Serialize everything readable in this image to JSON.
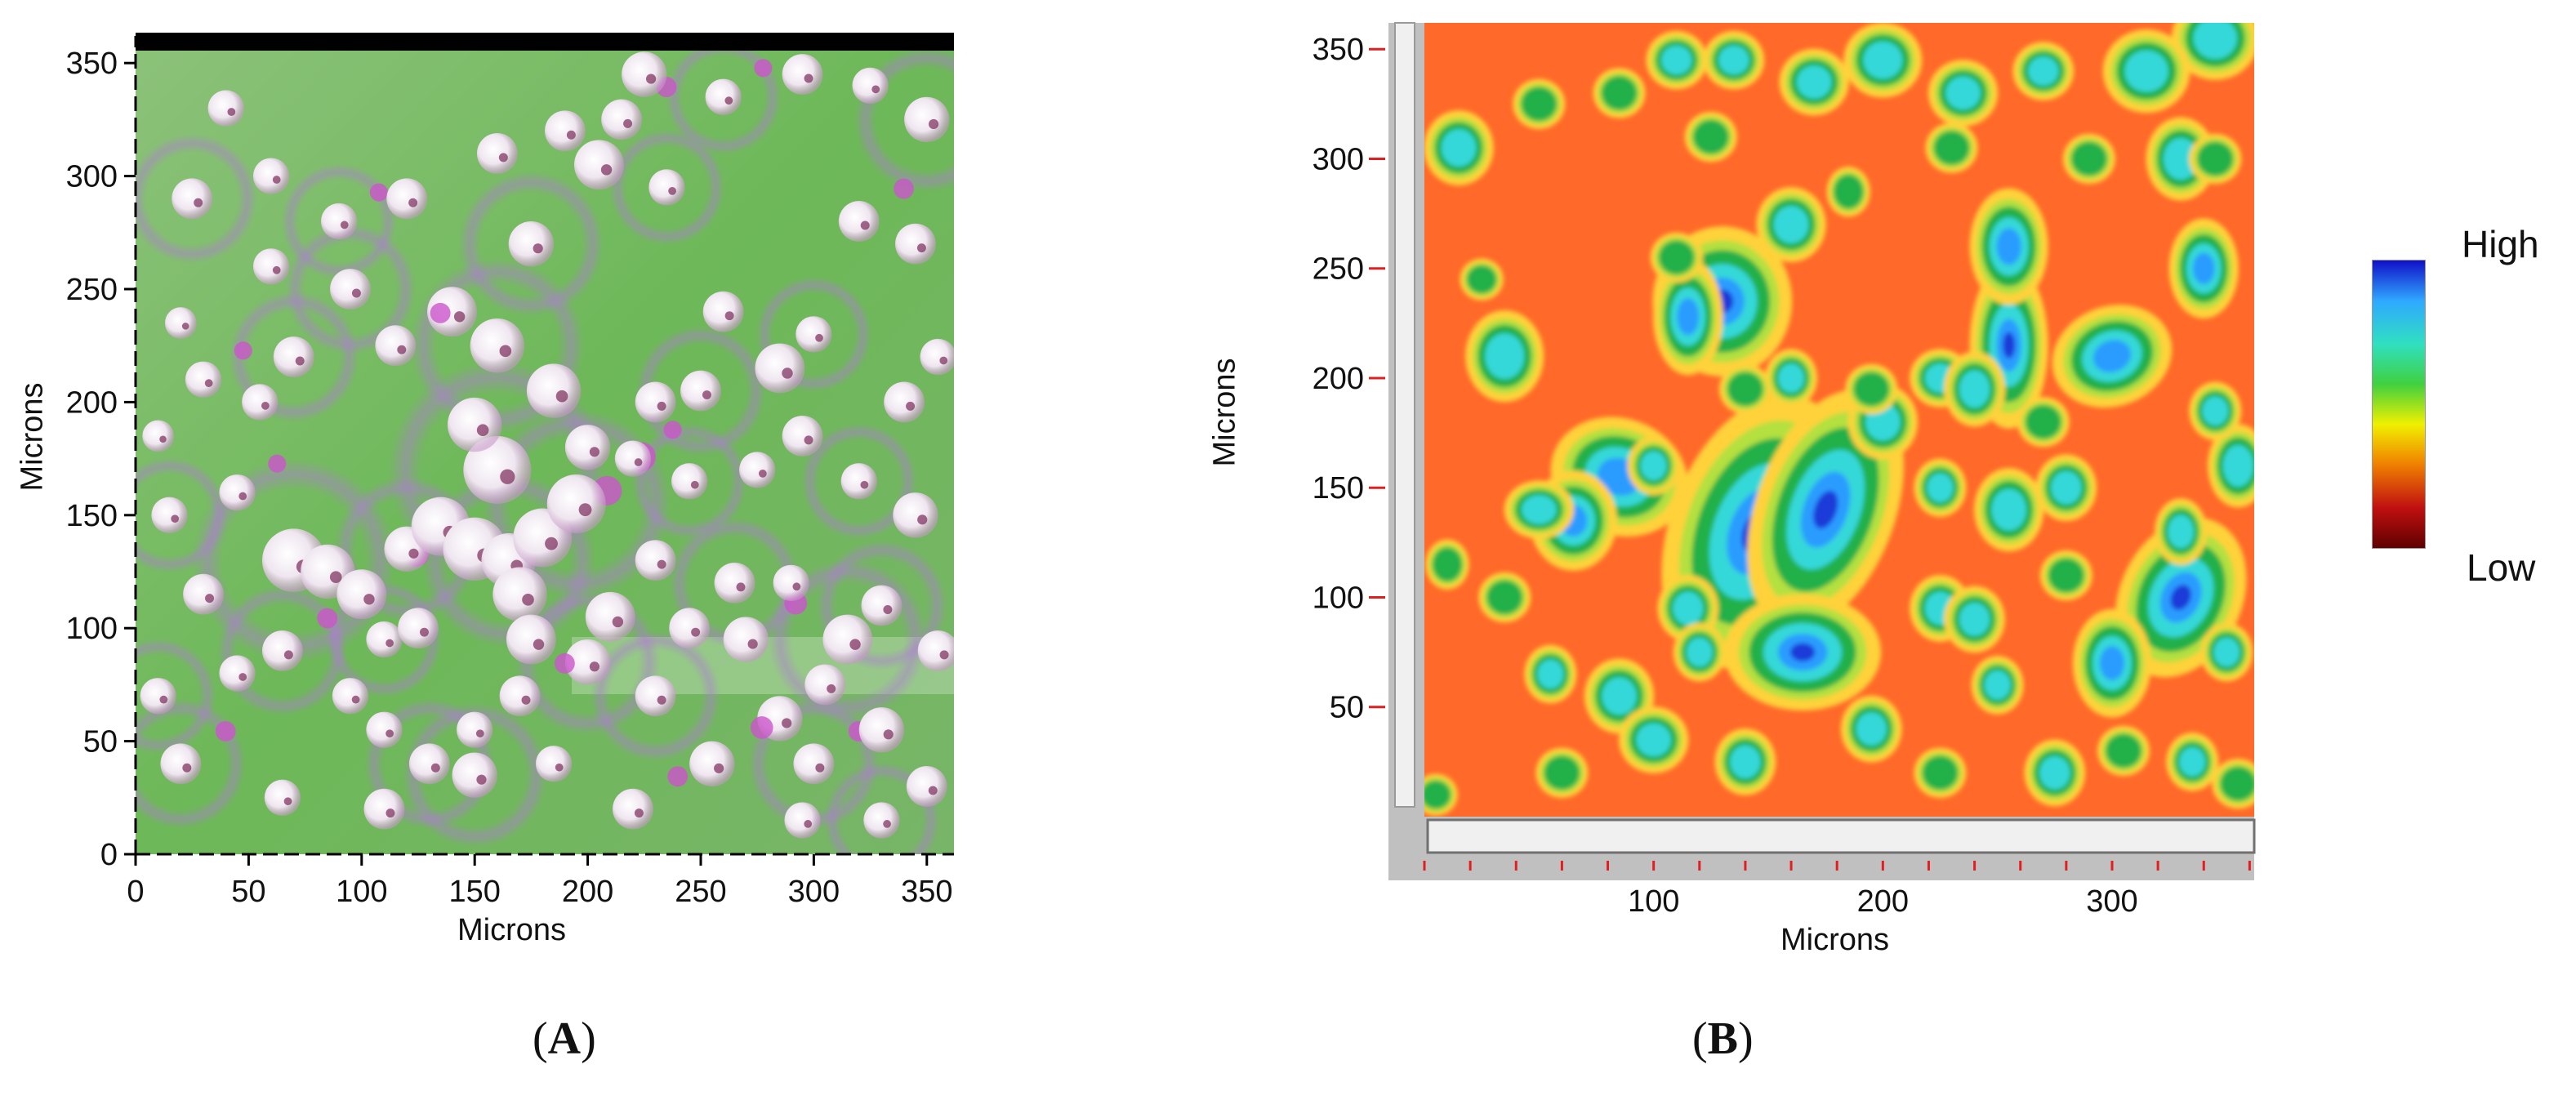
{
  "panels": [
    {
      "id": "A",
      "caption_open": "(",
      "caption_letter": "A",
      "caption_close": ")",
      "content": "optical micrograph of a green surface with scattered white and pink reflective particles and faint purple ring halos",
      "xlabel": "Microns",
      "ylabel": "Microns",
      "x_ticks": [
        0,
        50,
        100,
        150,
        200,
        250,
        300,
        350
      ],
      "y_ticks": [
        0,
        50,
        100,
        150,
        200,
        250,
        300,
        350
      ],
      "xlim": [
        0,
        362
      ],
      "ylim": [
        0,
        362
      ],
      "colors": {
        "background": "#6db858",
        "particle": "#f4eef6",
        "halo": "#b07ad6",
        "pink": "#cc55cc",
        "top_bar": "#000000"
      }
    },
    {
      "id": "B",
      "caption_open": "(",
      "caption_letter": "B",
      "caption_close": ")",
      "content": "false-colour height map: orange background with green-ringed cyan and blue raised features",
      "xlabel": "Microns",
      "ylabel": "Microns",
      "x_ticks": [
        100,
        200,
        300
      ],
      "y_ticks": [
        50,
        100,
        150,
        200,
        250,
        300,
        350
      ],
      "xlim": [
        0,
        362
      ],
      "ylim": [
        0,
        362
      ],
      "colorbar": {
        "high_label": "High",
        "low_label": "Low",
        "stops": [
          "#1010c8",
          "#2fa8ff",
          "#30e0c0",
          "#40d040",
          "#f0f000",
          "#f08000",
          "#c01010",
          "#600000"
        ]
      },
      "colors": {
        "background": "#ff6a2a",
        "frame": "#c0c0c0",
        "tick": "#e02020"
      }
    }
  ],
  "features_A": [
    [
      70,
      130,
      14
    ],
    [
      85,
      125,
      12
    ],
    [
      100,
      115,
      11
    ],
    [
      120,
      135,
      10
    ],
    [
      135,
      145,
      13
    ],
    [
      150,
      135,
      14
    ],
    [
      165,
      130,
      12
    ],
    [
      180,
      140,
      13
    ],
    [
      170,
      115,
      12
    ],
    [
      160,
      170,
      15
    ],
    [
      150,
      190,
      12
    ],
    [
      175,
      95,
      11
    ],
    [
      195,
      155,
      13
    ],
    [
      200,
      180,
      10
    ],
    [
      185,
      205,
      12
    ],
    [
      160,
      225,
      12
    ],
    [
      140,
      240,
      11
    ],
    [
      115,
      225,
      9
    ],
    [
      95,
      250,
      9
    ],
    [
      60,
      260,
      8
    ],
    [
      55,
      200,
      8
    ],
    [
      70,
      220,
      9
    ],
    [
      30,
      210,
      8
    ],
    [
      20,
      235,
      7
    ],
    [
      25,
      290,
      9
    ],
    [
      40,
      330,
      8
    ],
    [
      60,
      300,
      8
    ],
    [
      90,
      280,
      8
    ],
    [
      120,
      290,
      9
    ],
    [
      160,
      310,
      9
    ],
    [
      175,
      270,
      10
    ],
    [
      205,
      305,
      11
    ],
    [
      215,
      325,
      9
    ],
    [
      235,
      295,
      8
    ],
    [
      260,
      240,
      9
    ],
    [
      285,
      215,
      11
    ],
    [
      300,
      230,
      8
    ],
    [
      320,
      280,
      9
    ],
    [
      345,
      270,
      9
    ],
    [
      350,
      325,
      10
    ],
    [
      325,
      340,
      8
    ],
    [
      295,
      345,
      9
    ],
    [
      260,
      335,
      8
    ],
    [
      225,
      345,
      10
    ],
    [
      190,
      320,
      9
    ],
    [
      250,
      205,
      9
    ],
    [
      230,
      200,
      9
    ],
    [
      220,
      175,
      8
    ],
    [
      245,
      165,
      8
    ],
    [
      275,
      170,
      8
    ],
    [
      295,
      185,
      9
    ],
    [
      320,
      165,
      8
    ],
    [
      345,
      150,
      10
    ],
    [
      355,
      90,
      9
    ],
    [
      315,
      95,
      11
    ],
    [
      305,
      75,
      9
    ],
    [
      285,
      60,
      10
    ],
    [
      300,
      40,
      9
    ],
    [
      330,
      55,
      10
    ],
    [
      350,
      30,
      9
    ],
    [
      330,
      15,
      8
    ],
    [
      295,
      15,
      8
    ],
    [
      255,
      40,
      10
    ],
    [
      230,
      70,
      9
    ],
    [
      245,
      100,
      9
    ],
    [
      210,
      105,
      11
    ],
    [
      200,
      85,
      10
    ],
    [
      170,
      70,
      9
    ],
    [
      150,
      55,
      8
    ],
    [
      130,
      40,
      9
    ],
    [
      110,
      55,
      8
    ],
    [
      95,
      70,
      8
    ],
    [
      65,
      90,
      9
    ],
    [
      45,
      80,
      8
    ],
    [
      30,
      115,
      9
    ],
    [
      15,
      150,
      8
    ],
    [
      10,
      185,
      7
    ],
    [
      45,
      160,
      8
    ],
    [
      110,
      95,
      8
    ],
    [
      125,
      100,
      9
    ],
    [
      230,
      130,
      9
    ],
    [
      265,
      120,
      9
    ],
    [
      270,
      95,
      10
    ],
    [
      290,
      120,
      8
    ],
    [
      330,
      110,
      9
    ],
    [
      340,
      200,
      9
    ],
    [
      355,
      220,
      8
    ],
    [
      20,
      40,
      9
    ],
    [
      65,
      25,
      8
    ],
    [
      110,
      20,
      9
    ],
    [
      150,
      35,
      10
    ],
    [
      185,
      40,
      8
    ],
    [
      220,
      20,
      9
    ],
    [
      10,
      70,
      8
    ]
  ],
  "features_B": [
    [
      145,
      130,
      20,
      34,
      -20
    ],
    [
      175,
      140,
      16,
      30,
      -20
    ],
    [
      165,
      75,
      18,
      14,
      0
    ],
    [
      130,
      235,
      16,
      18,
      0
    ],
    [
      115,
      228,
      8,
      14,
      0
    ],
    [
      85,
      155,
      16,
      14,
      -20
    ],
    [
      65,
      135,
      10,
      12,
      0
    ],
    [
      35,
      210,
      9,
      11,
      0
    ],
    [
      255,
      215,
      9,
      20,
      0
    ],
    [
      300,
      210,
      14,
      12,
      20
    ],
    [
      330,
      100,
      14,
      20,
      -25
    ],
    [
      300,
      70,
      9,
      13,
      0
    ],
    [
      255,
      260,
      9,
      14,
      0
    ],
    [
      345,
      355,
      10,
      10,
      0
    ],
    [
      315,
      340,
      10,
      10,
      0
    ],
    [
      330,
      300,
      8,
      10,
      0
    ],
    [
      340,
      250,
      8,
      12,
      0
    ],
    [
      235,
      330,
      8,
      8,
      0
    ],
    [
      200,
      345,
      9,
      9,
      0
    ],
    [
      170,
      335,
      8,
      8,
      0
    ],
    [
      135,
      345,
      7,
      7,
      0
    ],
    [
      110,
      345,
      7,
      7,
      0
    ],
    [
      85,
      330,
      6,
      6,
      0
    ],
    [
      50,
      325,
      6,
      6,
      0
    ],
    [
      15,
      305,
      8,
      9,
      0
    ],
    [
      160,
      270,
      8,
      9,
      0
    ],
    [
      125,
      310,
      6,
      6,
      0
    ],
    [
      230,
      305,
      6,
      6,
      0
    ],
    [
      270,
      340,
      7,
      7,
      0
    ],
    [
      290,
      300,
      6,
      6,
      0
    ],
    [
      345,
      300,
      6,
      6,
      0
    ],
    [
      200,
      180,
      8,
      9,
      0
    ],
    [
      225,
      200,
      7,
      7,
      0
    ],
    [
      240,
      195,
      7,
      9,
      0
    ],
    [
      270,
      180,
      6,
      6,
      0
    ],
    [
      280,
      150,
      7,
      8,
      0
    ],
    [
      255,
      140,
      8,
      10,
      0
    ],
    [
      225,
      150,
      6,
      7,
      0
    ],
    [
      195,
      195,
      6,
      6,
      0
    ],
    [
      160,
      200,
      6,
      7,
      0
    ],
    [
      140,
      195,
      6,
      6,
      0
    ],
    [
      100,
      160,
      6,
      7,
      0
    ],
    [
      50,
      140,
      8,
      7,
      0
    ],
    [
      115,
      95,
      7,
      8,
      0
    ],
    [
      120,
      75,
      6,
      7,
      0
    ],
    [
      85,
      55,
      8,
      9,
      0
    ],
    [
      55,
      65,
      6,
      7,
      0
    ],
    [
      35,
      100,
      6,
      6,
      0
    ],
    [
      10,
      115,
      5,
      6,
      0
    ],
    [
      100,
      35,
      8,
      8,
      0
    ],
    [
      140,
      25,
      7,
      8,
      0
    ],
    [
      60,
      20,
      6,
      6,
      0
    ],
    [
      5,
      10,
      5,
      5,
      0
    ],
    [
      225,
      95,
      7,
      8,
      0
    ],
    [
      240,
      90,
      7,
      8,
      0
    ],
    [
      250,
      60,
      6,
      7,
      0
    ],
    [
      195,
      40,
      7,
      8,
      0
    ],
    [
      225,
      20,
      6,
      6,
      0
    ],
    [
      275,
      20,
      7,
      8,
      0
    ],
    [
      305,
      30,
      6,
      6,
      0
    ],
    [
      335,
      25,
      6,
      7,
      0
    ],
    [
      355,
      15,
      6,
      6,
      0
    ],
    [
      355,
      160,
      7,
      10,
      0
    ],
    [
      345,
      185,
      6,
      7,
      0
    ],
    [
      330,
      130,
      6,
      8,
      0
    ],
    [
      350,
      75,
      6,
      7,
      0
    ],
    [
      280,
      110,
      6,
      6,
      0
    ],
    [
      25,
      245,
      5,
      5,
      0
    ],
    [
      110,
      255,
      6,
      6,
      0
    ],
    [
      185,
      285,
      5,
      6,
      0
    ]
  ]
}
